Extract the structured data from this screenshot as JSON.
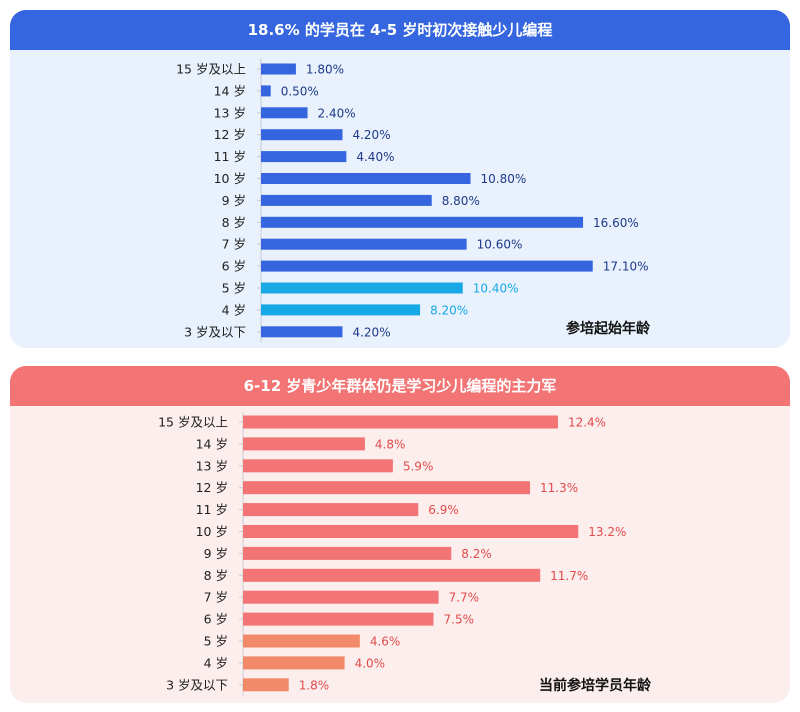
{
  "chart_data": [
    {
      "type": "bar",
      "orientation": "horizontal",
      "title": "18.6% 的学员在 4-5 岁时初次接触少儿编程",
      "caption": "参培起始年龄",
      "categories": [
        "15 岁及以上",
        "14 岁",
        "13 岁",
        "12 岁",
        "11 岁",
        "10 岁",
        "9 岁",
        "8 岁",
        "7 岁",
        "6 岁",
        "5 岁",
        "4 岁",
        "3 岁及以下"
      ],
      "values": [
        1.8,
        0.5,
        2.4,
        4.2,
        4.4,
        10.8,
        8.8,
        16.6,
        10.6,
        17.1,
        10.4,
        8.2,
        4.2
      ],
      "value_labels": [
        "1.80%",
        "0.50%",
        "2.40%",
        "4.20%",
        "4.40%",
        "10.80%",
        "8.80%",
        "16.60%",
        "10.60%",
        "17.10%",
        "10.40%",
        "8.20%",
        "4.20%"
      ],
      "highlight": [
        false,
        false,
        false,
        false,
        false,
        false,
        false,
        false,
        false,
        false,
        true,
        true,
        false
      ],
      "colors": {
        "bar": "#3566e0",
        "highlight": "#17a9e6",
        "label": "#1e3a8a",
        "highlight_label": "#17a9e6"
      },
      "xlim": [
        0,
        18
      ]
    },
    {
      "type": "bar",
      "orientation": "horizontal",
      "title": "6-12 岁青少年群体仍是学习少儿编程的主力军",
      "caption": "当前参培学员年龄",
      "categories": [
        "15 岁及以上",
        "14 岁",
        "13 岁",
        "12 岁",
        "11 岁",
        "10 岁",
        "9 岁",
        "8 岁",
        "7 岁",
        "6 岁",
        "5 岁",
        "4 岁",
        "3 岁及以下"
      ],
      "values": [
        12.4,
        4.8,
        5.9,
        11.3,
        6.9,
        13.2,
        8.2,
        11.7,
        7.7,
        7.5,
        4.6,
        4.0,
        1.8
      ],
      "value_labels": [
        "12.4%",
        "4.8%",
        "5.9%",
        "11.3%",
        "6.9%",
        "13.2%",
        "8.2%",
        "11.7%",
        "7.7%",
        "7.5%",
        "4.6%",
        "4.0%",
        "1.8%"
      ],
      "highlight": [
        false,
        false,
        false,
        false,
        false,
        false,
        false,
        false,
        false,
        false,
        true,
        true,
        true
      ],
      "colors": {
        "bar": "#f27474",
        "highlight": "#f28a6a",
        "label": "#e14b4b",
        "highlight_label": "#e14b4b"
      },
      "xlim": [
        0,
        14
      ]
    }
  ]
}
